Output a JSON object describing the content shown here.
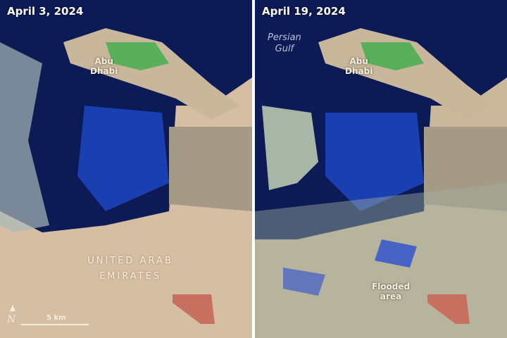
{
  "panels": [
    {
      "date": "April 3, 2024",
      "city_label_line1": "Abu",
      "city_label_line2": "Dhabi",
      "country_line1": "UNITED ARAB",
      "country_line2": "EMIRATES",
      "scale_label": "5 km",
      "north_label": "N"
    },
    {
      "date": "April 19, 2024",
      "city_label_line1": "Abu",
      "city_label_line2": "Dhabi",
      "sea_line1": "Persian",
      "sea_line2": "Gulf",
      "flood_line1": "Flooded",
      "flood_line2": "area"
    }
  ],
  "colors": {
    "sea": "#0c1a55",
    "shallow": "#1a3fb0",
    "land": "#d2b79a",
    "vegetation": "#3fae4a",
    "flood": "#2a4fd0",
    "farm": "#c87060"
  }
}
